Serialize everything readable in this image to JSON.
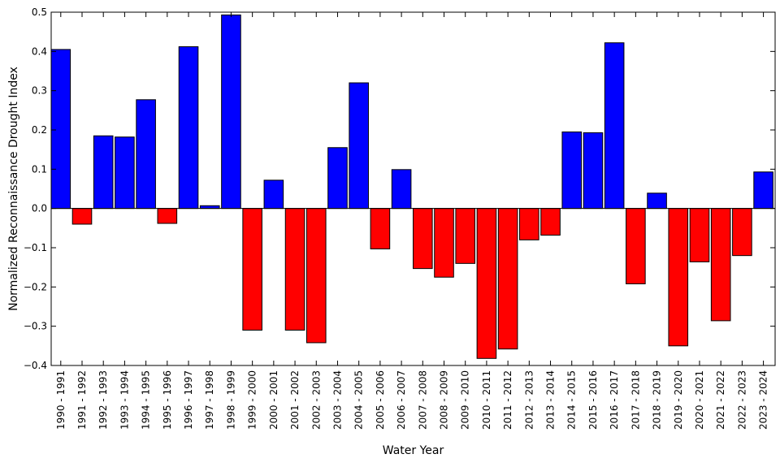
{
  "chart_data": {
    "type": "bar",
    "title": "",
    "xlabel": "Water Year",
    "ylabel": "Normalized Reconnaissance Drought Index",
    "ylim": [
      -0.4,
      0.5
    ],
    "yticks": [
      -0.4,
      -0.3,
      -0.2,
      -0.1,
      0.0,
      0.1,
      0.2,
      0.3,
      0.4,
      0.5
    ],
    "ytick_labels": [
      "−0.4",
      "−0.3",
      "−0.2",
      "−0.1",
      "0.0",
      "0.1",
      "0.2",
      "0.3",
      "0.4",
      "0.5"
    ],
    "grid": false,
    "legend": "none",
    "positive_color": "#0000ff",
    "negative_color": "#ff0000",
    "edge_color": "#000000",
    "categories": [
      "1990 - 1991",
      "1991 - 1992",
      "1992 - 1993",
      "1993 - 1994",
      "1994 - 1995",
      "1995 - 1996",
      "1996 - 1997",
      "1997 - 1998",
      "1998 - 1999",
      "1999 - 2000",
      "2000 - 2001",
      "2001 - 2002",
      "2002 - 2003",
      "2003 - 2004",
      "2004 - 2005",
      "2005 - 2006",
      "2006 - 2007",
      "2007 - 2008",
      "2008 - 2009",
      "2009 - 2010",
      "2010 - 2011",
      "2011 - 2012",
      "2012 - 2013",
      "2013 - 2014",
      "2014 - 2015",
      "2015 - 2016",
      "2016 - 2017",
      "2017 - 2018",
      "2018 - 2019",
      "2019 - 2020",
      "2020 - 2021",
      "2021 - 2022",
      "2022 - 2023",
      "2023 - 2024"
    ],
    "values": [
      0.405,
      -0.04,
      0.185,
      0.182,
      0.277,
      -0.038,
      0.412,
      0.007,
      0.493,
      -0.31,
      0.072,
      -0.31,
      -0.342,
      0.155,
      0.32,
      -0.103,
      0.099,
      -0.153,
      -0.175,
      -0.14,
      -0.382,
      -0.358,
      -0.08,
      -0.068,
      0.195,
      0.193,
      0.422,
      -0.192,
      0.039,
      -0.35,
      -0.136,
      -0.286,
      -0.12,
      0.093
    ]
  }
}
